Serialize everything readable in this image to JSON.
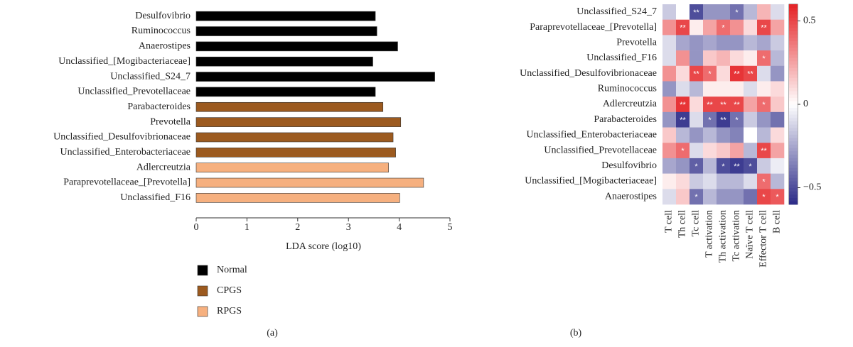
{
  "chart_data": [
    {
      "type": "barh",
      "label": "(a)",
      "xlabel": "LDA score (log10)",
      "categories": [
        "Desulfovibrio",
        "Ruminococcus",
        "Anaerostipes",
        "Unclassified_[Mogibacteriaceae]",
        "Unclassified_S24_7",
        "Unclassified_Prevotellaceae",
        "Parabacteroides",
        "Prevotella",
        "Unclassified_Desulfovibrionaceae",
        "Unclassified_Enterobacteriaceae",
        "Adlercreutzia",
        "Paraprevotellaceae_[Prevotella]",
        "Unclassified_F16"
      ],
      "series": [
        {
          "name": "Normal",
          "color": "#000000",
          "values": [
            3.53,
            3.56,
            3.97,
            3.48,
            4.7,
            3.53,
            null,
            null,
            null,
            null,
            null,
            null,
            null
          ]
        },
        {
          "name": "CPGS",
          "color": "#9c5a1f",
          "values": [
            null,
            null,
            null,
            null,
            null,
            null,
            3.68,
            4.03,
            3.88,
            3.93,
            null,
            null,
            null
          ]
        },
        {
          "name": "RPGS",
          "color": "#f6b07f",
          "values": [
            null,
            null,
            null,
            null,
            null,
            null,
            null,
            null,
            null,
            null,
            3.79,
            4.48,
            4.01
          ]
        }
      ],
      "xlim": [
        0,
        5
      ],
      "xticks": [
        0,
        1,
        2,
        3,
        4,
        5
      ]
    },
    {
      "type": "heatmap",
      "label": "(b)",
      "x": [
        "T cell",
        "Th cell",
        "Tc cell",
        "T activation",
        "Th activation",
        "Tc activation",
        "Naïve T cell",
        "Effector T cell",
        "B cell"
      ],
      "y": [
        "Unclassified_S24_7",
        "Paraprevotellaceae_[Prevotella]",
        "Prevotella",
        "Unclassified_F16",
        "Unclassified_Desulfovibrionaceae",
        "Ruminococcus",
        "Adlercreutzia",
        "Parabacteroides",
        "Unclassified_Enterobacteriaceae",
        "Unclassified_Prevotellaceae",
        "Desulfovibrio",
        "Unclassified_[Mogibacteriaceae]",
        "Anaerostipes"
      ],
      "values": [
        [
          -0.15,
          0.0,
          -0.5,
          -0.3,
          -0.3,
          -0.4,
          -0.2,
          0.2,
          -0.1
        ],
        [
          0.3,
          0.5,
          0.05,
          0.25,
          0.4,
          0.3,
          0.1,
          0.5,
          0.25
        ],
        [
          -0.1,
          -0.25,
          -0.3,
          -0.25,
          -0.3,
          -0.3,
          -0.2,
          -0.25,
          -0.15
        ],
        [
          -0.1,
          0.3,
          -0.3,
          0.15,
          0.2,
          0.1,
          0.05,
          0.4,
          -0.2
        ],
        [
          0.3,
          0.1,
          0.5,
          0.4,
          0.1,
          0.55,
          0.5,
          -0.1,
          -0.3
        ],
        [
          -0.3,
          -0.1,
          -0.2,
          0.05,
          0.05,
          0.05,
          -0.1,
          0.05,
          0.1
        ],
        [
          0.3,
          0.55,
          0.1,
          0.5,
          0.5,
          0.5,
          0.25,
          0.4,
          0.15
        ],
        [
          -0.3,
          -0.55,
          -0.1,
          -0.4,
          -0.55,
          -0.4,
          -0.15,
          -0.3,
          -0.4
        ],
        [
          0.15,
          -0.2,
          -0.3,
          -0.2,
          -0.3,
          -0.35,
          0.0,
          -0.2,
          0.1
        ],
        [
          0.3,
          0.4,
          -0.1,
          0.1,
          0.15,
          0.25,
          -0.2,
          0.5,
          0.25
        ],
        [
          -0.25,
          -0.3,
          -0.45,
          -0.2,
          -0.5,
          -0.55,
          -0.5,
          -0.15,
          -0.05
        ],
        [
          0.05,
          0.1,
          -0.15,
          -0.1,
          -0.2,
          -0.2,
          -0.1,
          0.4,
          -0.2
        ],
        [
          -0.1,
          0.15,
          -0.4,
          -0.2,
          -0.3,
          -0.3,
          -0.4,
          0.5,
          0.45
        ]
      ],
      "annotations": [
        [
          null,
          null,
          "**",
          null,
          null,
          "*",
          null,
          null,
          null
        ],
        [
          null,
          "**",
          null,
          null,
          "*",
          null,
          null,
          "**",
          null
        ],
        [
          null,
          null,
          null,
          null,
          null,
          null,
          null,
          null,
          null
        ],
        [
          null,
          null,
          null,
          null,
          null,
          null,
          null,
          "*",
          null
        ],
        [
          null,
          null,
          "**",
          "*",
          null,
          "**",
          "**",
          null,
          null
        ],
        [
          null,
          null,
          null,
          null,
          null,
          null,
          null,
          null,
          null
        ],
        [
          null,
          "**",
          null,
          "**",
          "**",
          "**",
          null,
          "*",
          null
        ],
        [
          null,
          "**",
          null,
          "*",
          "**",
          "*",
          null,
          null,
          null
        ],
        [
          null,
          null,
          null,
          null,
          null,
          null,
          null,
          null,
          null
        ],
        [
          null,
          "*",
          null,
          null,
          null,
          null,
          null,
          "**",
          null
        ],
        [
          null,
          null,
          "*",
          null,
          "*",
          "**",
          "*",
          null,
          null
        ],
        [
          null,
          null,
          null,
          null,
          null,
          null,
          null,
          "*",
          null
        ],
        [
          null,
          null,
          "*",
          null,
          null,
          null,
          null,
          "*",
          "*"
        ]
      ],
      "colormap": [
        "#2b2a87",
        "#ffffff",
        "#e52225"
      ],
      "zlim": [
        -0.6,
        0.6
      ],
      "zticks": [
        {
          "value": -0.5,
          "label": "−0.5"
        },
        0,
        0.5
      ]
    }
  ]
}
